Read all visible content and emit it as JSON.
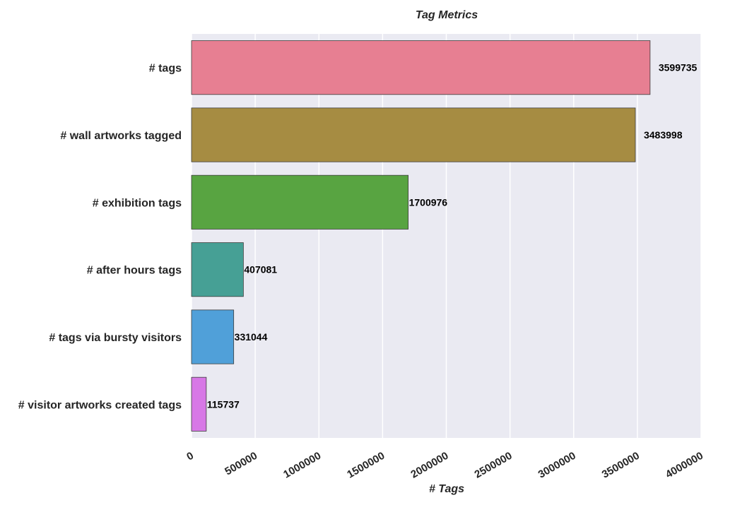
{
  "chart_data": {
    "type": "bar",
    "orientation": "horizontal",
    "title": "Tag Metrics",
    "xlabel": "# Tags",
    "ylabel": "",
    "xlim": [
      0,
      4000000
    ],
    "xticks": [
      "0",
      "500000",
      "1000000",
      "1500000",
      "2000000",
      "2500000",
      "3000000",
      "3500000",
      "4000000"
    ],
    "categories": [
      "# tags",
      "# wall artworks tagged",
      "# exhibition tags",
      "# after hours tags",
      "# tags via bursty visitors",
      "# visitor artworks created tags"
    ],
    "values": [
      3599735,
      3483998,
      1700976,
      407081,
      331044,
      115737
    ],
    "value_labels": [
      "3599735",
      "3483998",
      "1700976",
      "407081",
      "331044",
      "115737"
    ],
    "colors": [
      "#e77f92",
      "#a68c42",
      "#58a441",
      "#46a095",
      "#50a0d9",
      "#d778e6"
    ],
    "background": "#eaeaf2",
    "grid": true
  }
}
